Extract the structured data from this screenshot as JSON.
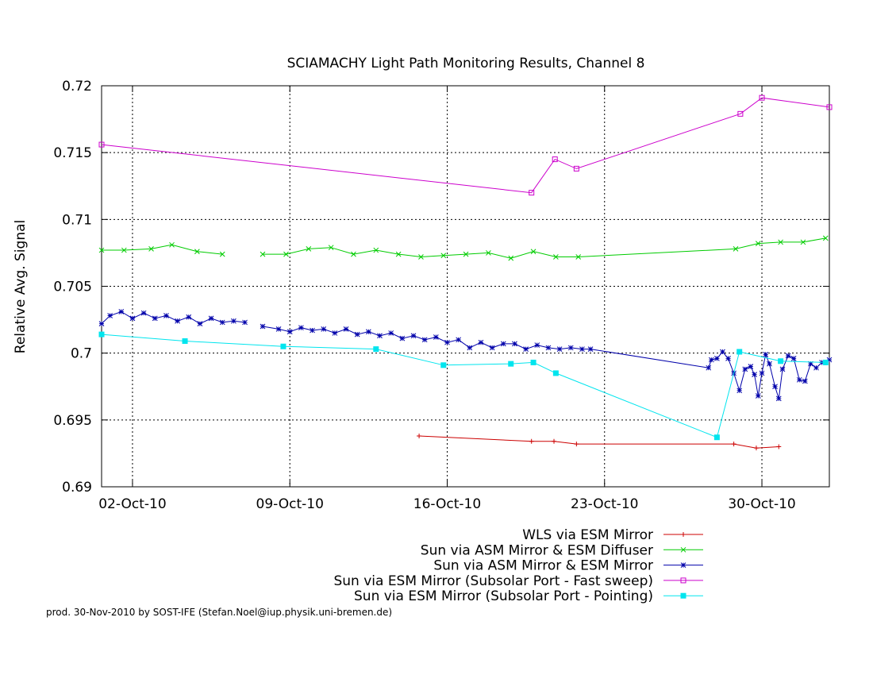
{
  "footer": "prod. 30-Nov-2010 by SOST-IFE (Stefan.Noel@iup.physik.uni-bremen.de)",
  "chart_data": {
    "type": "line",
    "title": "SCIAMACHY Light Path Monitoring Results, Channel 8",
    "xlabel": "",
    "ylabel": "Relative Avg. Signal",
    "xlim": [
      "2010-09-30T15:00",
      "2010-11-02T00:00"
    ],
    "ylim": [
      0.69,
      0.72
    ],
    "x_ticks": [
      {
        "label": "02-Oct-10",
        "date": "2010-10-02"
      },
      {
        "label": "09-Oct-10",
        "date": "2010-10-09"
      },
      {
        "label": "16-Oct-10",
        "date": "2010-10-16"
      },
      {
        "label": "23-Oct-10",
        "date": "2010-10-23"
      },
      {
        "label": "30-Oct-10",
        "date": "2010-10-30"
      }
    ],
    "y_ticks": [
      {
        "label": "0.69",
        "value": 0.69
      },
      {
        "label": "0.695",
        "value": 0.695
      },
      {
        "label": "0.7",
        "value": 0.7
      },
      {
        "label": "0.705",
        "value": 0.705
      },
      {
        "label": "0.71",
        "value": 0.71
      },
      {
        "label": "0.715",
        "value": 0.715
      },
      {
        "label": "0.72",
        "value": 0.72
      }
    ],
    "grid": true,
    "legend_position": "bottom-right",
    "series": [
      {
        "name": "WLS via ESM Mirror",
        "color": "#cc0000",
        "marker": "plus",
        "points": [
          [
            "2010-10-14T18:00",
            0.6938
          ],
          [
            "2010-10-19T18:00",
            0.6934
          ],
          [
            "2010-10-20T18:00",
            0.6934
          ],
          [
            "2010-10-21T18:00",
            0.6932
          ],
          [
            "2010-10-28T18:00",
            0.6932
          ],
          [
            "2010-10-29T18:00",
            0.6929
          ],
          [
            "2010-10-30T18:00",
            0.693
          ]
        ]
      },
      {
        "name": "Sun via ASM Mirror & ESM Diffuser",
        "color": "#00cc00",
        "marker": "x",
        "segments": [
          [
            [
              "2010-09-30T15:00",
              0.7077
            ],
            [
              "2010-10-01T15:00",
              0.7077
            ],
            [
              "2010-10-02T20:00",
              0.7078
            ],
            [
              "2010-10-03T18:00",
              0.7081
            ],
            [
              "2010-10-04T21:00",
              0.7076
            ],
            [
              "2010-10-06T00:00",
              0.7074
            ]
          ],
          [
            [
              "2010-10-07T19:00",
              0.7074
            ],
            [
              "2010-10-08T20:00",
              0.7074
            ],
            [
              "2010-10-09T20:00",
              0.7078
            ],
            [
              "2010-10-10T20:00",
              0.7079
            ],
            [
              "2010-10-11T20:00",
              0.7074
            ],
            [
              "2010-10-12T20:00",
              0.7077
            ],
            [
              "2010-10-13T20:00",
              0.7074
            ],
            [
              "2010-10-14T20:00",
              0.7072
            ],
            [
              "2010-10-15T20:00",
              0.7073
            ],
            [
              "2010-10-16T20:00",
              0.7074
            ],
            [
              "2010-10-17T20:00",
              0.7075
            ],
            [
              "2010-10-18T20:00",
              0.7071
            ],
            [
              "2010-10-19T20:00",
              0.7076
            ],
            [
              "2010-10-20T20:00",
              0.7072
            ],
            [
              "2010-10-21T20:00",
              0.7072
            ],
            [
              "2010-10-28T20:00",
              0.7078
            ],
            [
              "2010-10-29T20:00",
              0.7082
            ],
            [
              "2010-10-30T20:00",
              0.7083
            ],
            [
              "2010-10-31T20:00",
              0.7083
            ],
            [
              "2010-11-01T20:00",
              0.7086
            ]
          ]
        ]
      },
      {
        "name": "Sun via ASM Mirror & ESM Mirror",
        "color": "#0000aa",
        "marker": "star",
        "segments": [
          [
            [
              "2010-09-30T15:00",
              0.7022
            ],
            [
              "2010-10-01T00:00",
              0.7028
            ],
            [
              "2010-10-01T12:00",
              0.7031
            ],
            [
              "2010-10-02T00:00",
              0.7026
            ],
            [
              "2010-10-02T12:00",
              0.703
            ],
            [
              "2010-10-03T00:00",
              0.7026
            ],
            [
              "2010-10-03T12:00",
              0.7028
            ],
            [
              "2010-10-04T00:00",
              0.7024
            ],
            [
              "2010-10-04T12:00",
              0.7027
            ],
            [
              "2010-10-05T00:00",
              0.7022
            ],
            [
              "2010-10-05T12:00",
              0.7026
            ],
            [
              "2010-10-06T00:00",
              0.7023
            ],
            [
              "2010-10-06T12:00",
              0.7024
            ],
            [
              "2010-10-07T00:00",
              0.7023
            ]
          ],
          [
            [
              "2010-10-07T19:00",
              0.702
            ],
            [
              "2010-10-08T12:00",
              0.7018
            ],
            [
              "2010-10-09T00:00",
              0.7016
            ],
            [
              "2010-10-09T12:00",
              0.7019
            ],
            [
              "2010-10-10T00:00",
              0.7017
            ],
            [
              "2010-10-10T12:00",
              0.7018
            ],
            [
              "2010-10-11T00:00",
              0.7015
            ],
            [
              "2010-10-11T12:00",
              0.7018
            ],
            [
              "2010-10-12T00:00",
              0.7014
            ],
            [
              "2010-10-12T12:00",
              0.7016
            ],
            [
              "2010-10-13T00:00",
              0.7013
            ],
            [
              "2010-10-13T12:00",
              0.7015
            ],
            [
              "2010-10-14T00:00",
              0.7011
            ],
            [
              "2010-10-14T12:00",
              0.7013
            ],
            [
              "2010-10-15T00:00",
              0.701
            ],
            [
              "2010-10-15T12:00",
              0.7012
            ],
            [
              "2010-10-16T00:00",
              0.7008
            ],
            [
              "2010-10-16T12:00",
              0.701
            ],
            [
              "2010-10-17T00:00",
              0.7004
            ],
            [
              "2010-10-17T12:00",
              0.7008
            ],
            [
              "2010-10-18T00:00",
              0.7004
            ],
            [
              "2010-10-18T12:00",
              0.7007
            ],
            [
              "2010-10-19T00:00",
              0.7007
            ],
            [
              "2010-10-19T12:00",
              0.7003
            ],
            [
              "2010-10-20T00:00",
              0.7006
            ],
            [
              "2010-10-20T12:00",
              0.7004
            ],
            [
              "2010-10-21T00:00",
              0.7003
            ],
            [
              "2010-10-21T12:00",
              0.7004
            ],
            [
              "2010-10-22T00:00",
              0.7003
            ],
            [
              "2010-10-22T09:00",
              0.7003
            ],
            [
              "2010-10-27T15:00",
              0.6989
            ],
            [
              "2010-10-27T18:00",
              0.6995
            ],
            [
              "2010-10-28T00:00",
              0.6996
            ],
            [
              "2010-10-28T06:00",
              0.7001
            ],
            [
              "2010-10-28T12:00",
              0.6996
            ],
            [
              "2010-10-28T18:00",
              0.6985
            ],
            [
              "2010-10-29T00:00",
              0.6972
            ],
            [
              "2010-10-29T06:00",
              0.6988
            ],
            [
              "2010-10-29T12:00",
              0.699
            ],
            [
              "2010-10-29T16:00",
              0.6984
            ],
            [
              "2010-10-29T20:00",
              0.6968
            ],
            [
              "2010-10-30T00:00",
              0.6985
            ],
            [
              "2010-10-30T04:00",
              0.6999
            ],
            [
              "2010-10-30T08:00",
              0.6992
            ],
            [
              "2010-10-30T14:00",
              0.6975
            ],
            [
              "2010-10-30T18:00",
              0.6966
            ],
            [
              "2010-10-30T22:00",
              0.6988
            ],
            [
              "2010-10-31T04:00",
              0.6998
            ],
            [
              "2010-10-31T10:00",
              0.6996
            ],
            [
              "2010-10-31T16:00",
              0.698
            ],
            [
              "2010-10-31T22:00",
              0.6979
            ],
            [
              "2010-11-01T04:00",
              0.6992
            ],
            [
              "2010-11-01T10:00",
              0.6989
            ],
            [
              "2010-11-01T16:00",
              0.6993
            ],
            [
              "2010-11-02T00:00",
              0.6995
            ]
          ]
        ]
      },
      {
        "name": "Sun via ESM Mirror (Subsolar Port - Fast sweep)",
        "color": "#cc00cc",
        "marker": "square",
        "points": [
          [
            "2010-09-30T15:00",
            0.7156
          ],
          [
            "2010-10-19T18:00",
            0.712
          ],
          [
            "2010-10-20T19:00",
            0.7145
          ],
          [
            "2010-10-21T18:00",
            0.7138
          ],
          [
            "2010-10-29T01:00",
            0.7179
          ],
          [
            "2010-10-30T00:00",
            0.7191
          ],
          [
            "2010-11-02T00:00",
            0.7184
          ]
        ]
      },
      {
        "name": "Sun via ESM Mirror (Subsolar Port - Pointing)",
        "color": "#00e5ee",
        "marker": "filled-square",
        "points": [
          [
            "2010-09-30T15:00",
            0.7014
          ],
          [
            "2010-10-04T08:00",
            0.7009
          ],
          [
            "2010-10-08T17:00",
            0.7005
          ],
          [
            "2010-10-12T20:00",
            0.7003
          ],
          [
            "2010-10-15T20:00",
            0.6991
          ],
          [
            "2010-10-18T20:00",
            0.6992
          ],
          [
            "2010-10-19T20:00",
            0.6993
          ],
          [
            "2010-10-20T20:00",
            0.6985
          ],
          [
            "2010-10-28T00:00",
            0.6937
          ],
          [
            "2010-10-29T00:00",
            0.7001
          ],
          [
            "2010-10-30T20:00",
            0.6994
          ],
          [
            "2010-11-01T20:00",
            0.6993
          ]
        ]
      }
    ]
  }
}
